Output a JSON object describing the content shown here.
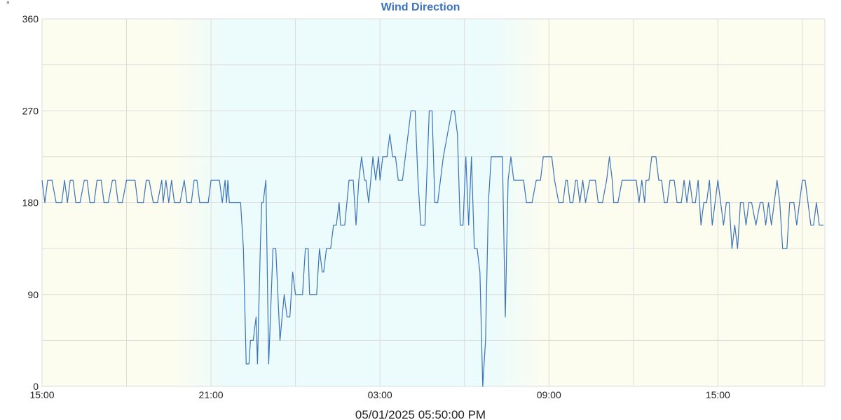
{
  "colors": {
    "line": "#3b73b9",
    "title": "#3b73b9",
    "day_bg": "#fdfdef",
    "night_bg": "#ecfbfb",
    "grid": "#dcdcdc"
  },
  "chart_data": {
    "type": "line",
    "title": "Wind Direction",
    "ylabel": "°",
    "footer": "05/01/2025 05:50:00 PM",
    "ylim": [
      0,
      360
    ],
    "yticks": [
      0,
      90,
      180,
      270,
      360
    ],
    "xlim_hours": [
      15,
      42.8
    ],
    "xticks": [
      {
        "hour": 15,
        "label": "15:00"
      },
      {
        "hour": 21,
        "label": "21:00"
      },
      {
        "hour": 27,
        "label": "03:00"
      },
      {
        "hour": 33,
        "label": "09:00"
      },
      {
        "hour": 39,
        "label": "15:00"
      }
    ],
    "night_band_hours": [
      20.5,
      32.0
    ],
    "grid": true,
    "series": [
      {
        "values": [
          [
            15.0,
            202
          ],
          [
            15.1,
            180
          ],
          [
            15.2,
            202
          ],
          [
            15.35,
            202
          ],
          [
            15.5,
            180
          ],
          [
            15.7,
            180
          ],
          [
            15.8,
            202
          ],
          [
            15.9,
            180
          ],
          [
            16.0,
            202
          ],
          [
            16.1,
            202
          ],
          [
            16.2,
            180
          ],
          [
            16.35,
            180
          ],
          [
            16.5,
            202
          ],
          [
            16.6,
            202
          ],
          [
            16.7,
            180
          ],
          [
            16.85,
            180
          ],
          [
            16.95,
            202
          ],
          [
            17.1,
            202
          ],
          [
            17.2,
            180
          ],
          [
            17.35,
            180
          ],
          [
            17.5,
            202
          ],
          [
            17.6,
            202
          ],
          [
            17.7,
            180
          ],
          [
            17.85,
            180
          ],
          [
            18.0,
            202
          ],
          [
            18.3,
            202
          ],
          [
            18.4,
            180
          ],
          [
            18.6,
            180
          ],
          [
            18.7,
            202
          ],
          [
            18.8,
            202
          ],
          [
            18.95,
            180
          ],
          [
            19.1,
            180
          ],
          [
            19.25,
            202
          ],
          [
            19.3,
            180
          ],
          [
            19.4,
            202
          ],
          [
            19.5,
            180
          ],
          [
            19.6,
            202
          ],
          [
            19.7,
            180
          ],
          [
            19.9,
            180
          ],
          [
            20.05,
            202
          ],
          [
            20.15,
            180
          ],
          [
            20.3,
            180
          ],
          [
            20.4,
            202
          ],
          [
            20.5,
            202
          ],
          [
            20.6,
            180
          ],
          [
            20.9,
            180
          ],
          [
            21.0,
            202
          ],
          [
            21.3,
            202
          ],
          [
            21.4,
            180
          ],
          [
            21.5,
            202
          ],
          [
            21.55,
            180
          ],
          [
            21.6,
            202
          ],
          [
            21.65,
            180
          ],
          [
            22.05,
            180
          ],
          [
            22.15,
            135
          ],
          [
            22.25,
            22
          ],
          [
            22.35,
            22
          ],
          [
            22.4,
            45
          ],
          [
            22.5,
            45
          ],
          [
            22.6,
            68
          ],
          [
            22.65,
            22
          ],
          [
            22.75,
            135
          ],
          [
            22.8,
            180
          ],
          [
            22.85,
            180
          ],
          [
            22.95,
            202
          ],
          [
            23.05,
            22
          ],
          [
            23.2,
            135
          ],
          [
            23.3,
            135
          ],
          [
            23.45,
            45
          ],
          [
            23.6,
            90
          ],
          [
            23.7,
            68
          ],
          [
            23.8,
            68
          ],
          [
            23.9,
            112
          ],
          [
            24.0,
            90
          ],
          [
            24.25,
            90
          ],
          [
            24.35,
            135
          ],
          [
            24.45,
            135
          ],
          [
            24.5,
            90
          ],
          [
            24.75,
            90
          ],
          [
            24.85,
            135
          ],
          [
            24.95,
            112
          ],
          [
            25.0,
            112
          ],
          [
            25.1,
            135
          ],
          [
            25.25,
            135
          ],
          [
            25.35,
            158
          ],
          [
            25.45,
            158
          ],
          [
            25.55,
            180
          ],
          [
            25.6,
            158
          ],
          [
            25.75,
            158
          ],
          [
            25.9,
            202
          ],
          [
            26.05,
            202
          ],
          [
            26.15,
            158
          ],
          [
            26.25,
            202
          ],
          [
            26.35,
            225
          ],
          [
            26.45,
            202
          ],
          [
            26.5,
            202
          ],
          [
            26.6,
            180
          ],
          [
            26.75,
            225
          ],
          [
            26.85,
            202
          ],
          [
            26.95,
            225
          ],
          [
            27.0,
            202
          ],
          [
            27.1,
            225
          ],
          [
            27.25,
            225
          ],
          [
            27.35,
            247
          ],
          [
            27.45,
            225
          ],
          [
            27.55,
            225
          ],
          [
            27.65,
            202
          ],
          [
            27.8,
            202
          ],
          [
            28.0,
            247
          ],
          [
            28.1,
            270
          ],
          [
            28.25,
            270
          ],
          [
            28.35,
            202
          ],
          [
            28.45,
            158
          ],
          [
            28.6,
            158
          ],
          [
            28.75,
            270
          ],
          [
            28.85,
            270
          ],
          [
            28.95,
            180
          ],
          [
            29.05,
            180
          ],
          [
            29.25,
            225
          ],
          [
            29.55,
            270
          ],
          [
            29.65,
            270
          ],
          [
            29.75,
            247
          ],
          [
            29.85,
            158
          ],
          [
            29.95,
            158
          ],
          [
            30.05,
            225
          ],
          [
            30.15,
            158
          ],
          [
            30.25,
            225
          ],
          [
            30.35,
            135
          ],
          [
            30.45,
            135
          ],
          [
            30.55,
            112
          ],
          [
            30.65,
            0
          ],
          [
            30.75,
            45
          ],
          [
            30.85,
            180
          ],
          [
            30.95,
            225
          ],
          [
            31.1,
            225
          ],
          [
            31.35,
            225
          ],
          [
            31.45,
            68
          ],
          [
            31.55,
            202
          ],
          [
            31.65,
            225
          ],
          [
            31.75,
            202
          ],
          [
            32.0,
            202
          ],
          [
            32.1,
            202
          ],
          [
            32.2,
            180
          ],
          [
            32.4,
            180
          ],
          [
            32.55,
            202
          ],
          [
            32.7,
            202
          ],
          [
            32.8,
            225
          ],
          [
            33.1,
            225
          ],
          [
            33.2,
            202
          ],
          [
            33.35,
            180
          ],
          [
            33.5,
            180
          ],
          [
            33.6,
            202
          ],
          [
            33.65,
            202
          ],
          [
            33.75,
            180
          ],
          [
            33.85,
            180
          ],
          [
            33.95,
            202
          ],
          [
            34.0,
            202
          ],
          [
            34.1,
            180
          ],
          [
            34.2,
            202
          ],
          [
            34.3,
            180
          ],
          [
            34.45,
            202
          ],
          [
            34.65,
            202
          ],
          [
            34.75,
            180
          ],
          [
            34.9,
            180
          ],
          [
            35.05,
            202
          ],
          [
            35.15,
            225
          ],
          [
            35.25,
            202
          ],
          [
            35.3,
            180
          ],
          [
            35.45,
            180
          ],
          [
            35.6,
            202
          ],
          [
            36.1,
            202
          ],
          [
            36.2,
            180
          ],
          [
            36.3,
            202
          ],
          [
            36.4,
            180
          ],
          [
            36.45,
            202
          ],
          [
            36.55,
            202
          ],
          [
            36.65,
            225
          ],
          [
            36.8,
            225
          ],
          [
            36.9,
            202
          ],
          [
            37.0,
            202
          ],
          [
            37.1,
            180
          ],
          [
            37.2,
            180
          ],
          [
            37.3,
            202
          ],
          [
            37.45,
            202
          ],
          [
            37.55,
            180
          ],
          [
            37.7,
            180
          ],
          [
            37.8,
            202
          ],
          [
            37.9,
            180
          ],
          [
            38.0,
            202
          ],
          [
            38.1,
            180
          ],
          [
            38.2,
            180
          ],
          [
            38.3,
            202
          ],
          [
            38.4,
            158
          ],
          [
            38.5,
            180
          ],
          [
            38.6,
            180
          ],
          [
            38.7,
            202
          ],
          [
            38.8,
            158
          ],
          [
            38.9,
            180
          ],
          [
            39.0,
            202
          ],
          [
            39.1,
            180
          ],
          [
            39.2,
            158
          ],
          [
            39.3,
            180
          ],
          [
            39.4,
            180
          ],
          [
            39.5,
            135
          ],
          [
            39.6,
            158
          ],
          [
            39.7,
            135
          ],
          [
            39.8,
            180
          ],
          [
            39.9,
            180
          ],
          [
            40.0,
            158
          ],
          [
            40.1,
            180
          ],
          [
            40.2,
            180
          ],
          [
            40.35,
            158
          ],
          [
            40.5,
            180
          ],
          [
            40.6,
            180
          ],
          [
            40.7,
            158
          ],
          [
            40.8,
            180
          ],
          [
            40.9,
            158
          ],
          [
            41.0,
            180
          ],
          [
            41.1,
            202
          ],
          [
            41.2,
            180
          ],
          [
            41.3,
            135
          ],
          [
            41.45,
            135
          ],
          [
            41.55,
            180
          ],
          [
            41.7,
            180
          ],
          [
            41.8,
            158
          ],
          [
            41.9,
            180
          ],
          [
            42.0,
            202
          ],
          [
            42.1,
            202
          ],
          [
            42.2,
            180
          ],
          [
            42.3,
            158
          ],
          [
            42.4,
            158
          ],
          [
            42.5,
            180
          ],
          [
            42.6,
            158
          ],
          [
            42.75,
            158
          ]
        ]
      }
    ]
  }
}
